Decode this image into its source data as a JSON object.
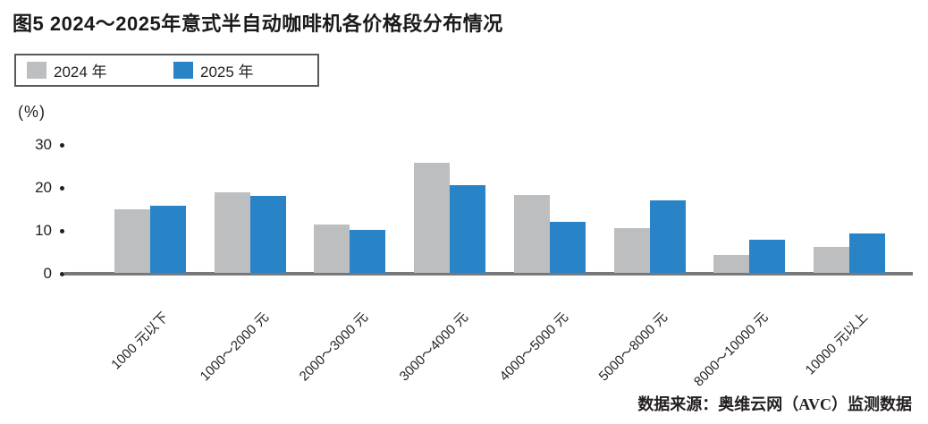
{
  "title": "图5 2024～2025年意式半自动咖啡机各价格段分布情况",
  "y_axis": {
    "unit_label": "(%)"
  },
  "source": "数据来源：奥维云网（AVC）监测数据",
  "colors": {
    "bar_2024": "#bcbec0",
    "bar_2025": "#2983c7",
    "axis_line": "#77787b",
    "text": "#231f20",
    "legend_border": "#58595b"
  },
  "chart_data": {
    "type": "bar",
    "title": "图5 2024～2025年意式半自动咖啡机各价格段分布情况",
    "categories": [
      "1000 元以下",
      "1000～2000 元",
      "2000～3000 元",
      "3000～4000 元",
      "4000～5000 元",
      "5000～8000 元",
      "8000～10000 元",
      "10000 元以上"
    ],
    "series": [
      {
        "name": "2024 年",
        "color": "#bcbec0",
        "values": [
          14.7,
          18.7,
          11.3,
          25.7,
          18.1,
          10.4,
          4.2,
          6.1
        ]
      },
      {
        "name": "2025 年",
        "color": "#2983c7",
        "values": [
          15.7,
          18.0,
          10.0,
          20.5,
          11.9,
          16.9,
          7.7,
          9.1
        ]
      }
    ],
    "xlabel": "",
    "ylabel": "(%)",
    "ylim": [
      0,
      30
    ],
    "yticks": [
      0,
      10,
      20,
      30
    ],
    "legend_position": "top-left",
    "grid": false
  }
}
